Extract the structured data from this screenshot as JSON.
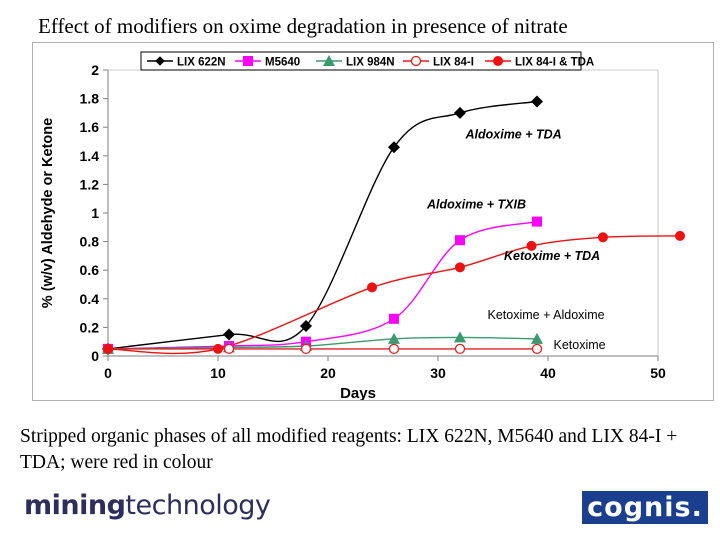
{
  "slide": {
    "title": "Effect of modifiers on oxime degradation in presence of nitrate",
    "caption": "Stripped organic phases of all modified reagents: LIX 622N, M5640 and LIX 84-I  + TDA; were red in colour",
    "logo_left_bold": "mining",
    "logo_left_regular": "technology",
    "logo_right": "cognis."
  },
  "chart_data": {
    "type": "line",
    "xlabel": "Days",
    "ylabel": "% (w/v) Aldehyde or Ketone",
    "xlim": [
      0,
      50
    ],
    "ylim": [
      0,
      2
    ],
    "xticks": [
      "0",
      "10",
      "20",
      "30",
      "40",
      "50"
    ],
    "yticks": [
      "0",
      "0.2",
      "0.4",
      "0.6",
      "0.8",
      "1",
      "1.2",
      "1.4",
      "1.6",
      "1.8",
      "2"
    ],
    "grid": false,
    "legend": "top",
    "series": [
      {
        "name": "LIX 622N",
        "color": "#000000",
        "marker": "diamond",
        "x": [
          0,
          11,
          18,
          26,
          32,
          39
        ],
        "y": [
          0.05,
          0.15,
          0.21,
          1.46,
          1.7,
          1.78
        ]
      },
      {
        "name": "M5640",
        "color": "#ff00ff",
        "marker": "square",
        "x": [
          0,
          11,
          18,
          26,
          32,
          39
        ],
        "y": [
          0.05,
          0.07,
          0.1,
          0.26,
          0.81,
          0.94
        ]
      },
      {
        "name": "LIX 984N",
        "color": "#3a9a6e",
        "marker": "triangle",
        "x": [
          0,
          11,
          18,
          26,
          32,
          39
        ],
        "y": [
          0.05,
          0.06,
          0.07,
          0.12,
          0.13,
          0.12
        ]
      },
      {
        "name": "LIX 84-I",
        "color": "#e02020",
        "marker": "open-circle",
        "x": [
          0,
          11,
          18,
          26,
          32,
          39
        ],
        "y": [
          0.05,
          0.05,
          0.05,
          0.05,
          0.05,
          0.05
        ]
      },
      {
        "name": "LIX 84-I & TDA",
        "color": "#ee1111",
        "marker": "circle",
        "x": [
          0,
          10,
          24,
          32,
          38.5,
          45,
          52
        ],
        "y": [
          0.05,
          0.05,
          0.48,
          0.62,
          0.77,
          0.83,
          0.84
        ]
      }
    ],
    "annotations": [
      {
        "text": "Aldoxime + TDA",
        "x": 32.5,
        "y": 1.52,
        "style": "bold-italic"
      },
      {
        "text": "Aldoxime + TXIB",
        "x": 29,
        "y": 1.03,
        "style": "bold-italic"
      },
      {
        "text": "Ketoxime + TDA",
        "x": 36,
        "y": 0.67,
        "style": "bold-italic"
      },
      {
        "text": "Ketoxime + Aldoxime",
        "x": 34.5,
        "y": 0.26,
        "style": "normal"
      },
      {
        "text": "Ketoxime",
        "x": 40.5,
        "y": 0.05,
        "style": "normal"
      }
    ]
  }
}
